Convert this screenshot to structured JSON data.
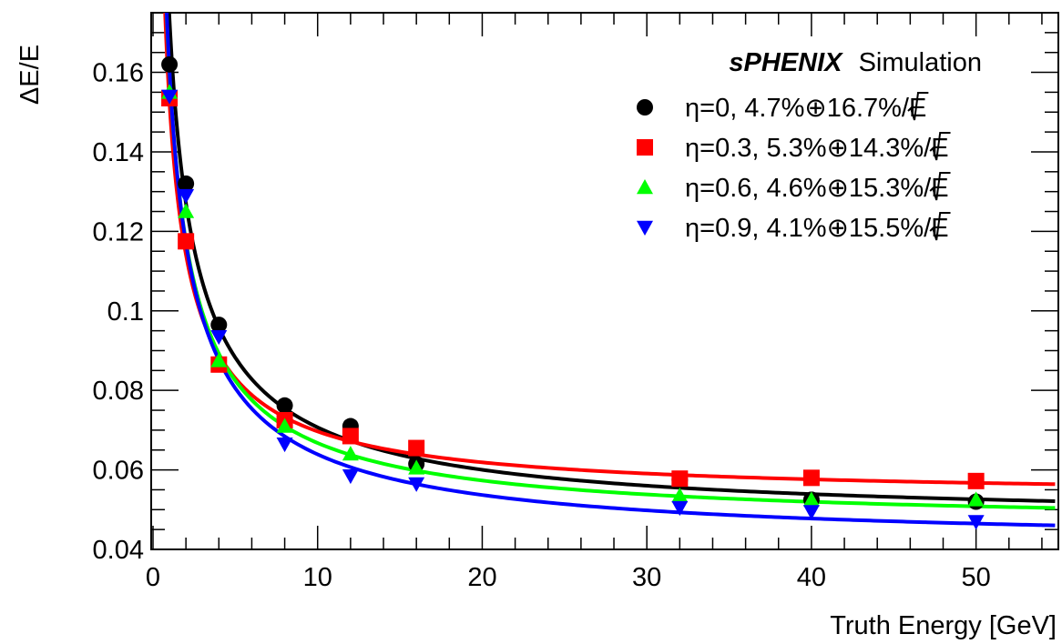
{
  "chart_data": {
    "type": "scatter",
    "title": "",
    "xlabel": "Truth Energy [GeV]",
    "ylabel": "ΔE/E",
    "xlim": [
      0,
      55
    ],
    "ylim": [
      0.04,
      0.175
    ],
    "x_ticks": [
      0,
      10,
      20,
      30,
      40,
      50
    ],
    "x_tick_labels": [
      "0",
      "10",
      "20",
      "30",
      "40",
      "50"
    ],
    "y_ticks": [
      0.04,
      0.06,
      0.08,
      0.1,
      0.12,
      0.14,
      0.16
    ],
    "y_tick_labels": [
      "0.04",
      "0.06",
      "0.08",
      "0.1",
      "0.12",
      "0.14",
      "0.16"
    ],
    "grid": false,
    "legend_position": "top-right",
    "annotation": {
      "bold": "sPHENIX",
      "normal": "Simulation"
    },
    "series": [
      {
        "name": "η=0, 4.7%⊕16.7%/√E",
        "legend_prefix": "η=0, 4.7%⊕16.7%/",
        "legend_suffix": "E",
        "color": "#000000",
        "marker": "circle",
        "fit": {
          "a": 0.047,
          "b": 0.167
        },
        "x": [
          1,
          2,
          4,
          8,
          12,
          16,
          32,
          40,
          50
        ],
        "y": [
          0.162,
          0.132,
          0.0965,
          0.0762,
          0.071,
          0.0615,
          0.0575,
          0.0525,
          0.052
        ]
      },
      {
        "name": "η=0.3, 5.3%⊕14.3%/√E",
        "legend_prefix": "η=0.3, 5.3%⊕14.3%/",
        "legend_suffix": "E",
        "color": "#ff0000",
        "marker": "square",
        "fit": {
          "a": 0.053,
          "b": 0.143
        },
        "x": [
          1,
          2,
          4,
          8,
          12,
          16,
          32,
          40,
          50
        ],
        "y": [
          0.1535,
          0.1175,
          0.0865,
          0.0725,
          0.0685,
          0.0655,
          0.0578,
          0.058,
          0.0572
        ]
      },
      {
        "name": "η=0.6, 4.6%⊕15.3%/√E",
        "legend_prefix": "η=0.6, 4.6%⊕15.3%/",
        "legend_suffix": "E",
        "color": "#00ff00",
        "marker": "triangle-up",
        "fit": {
          "a": 0.046,
          "b": 0.153
        },
        "x": [
          1,
          2,
          4,
          8,
          12,
          16,
          32,
          40,
          50
        ],
        "y": [
          0.155,
          0.125,
          0.0875,
          0.071,
          0.064,
          0.0605,
          0.0535,
          0.0525,
          0.0525
        ]
      },
      {
        "name": "η=0.9, 4.1%⊕15.5%/√E",
        "legend_prefix": "η=0.9, 4.1%⊕15.5%/",
        "legend_suffix": "E",
        "color": "#0000ff",
        "marker": "triangle-down",
        "fit": {
          "a": 0.041,
          "b": 0.155
        },
        "x": [
          1,
          2,
          4,
          8,
          12,
          16,
          32,
          40,
          50
        ],
        "y": [
          0.154,
          0.129,
          0.0935,
          0.0665,
          0.0585,
          0.0565,
          0.0505,
          0.0495,
          0.047
        ]
      }
    ]
  }
}
